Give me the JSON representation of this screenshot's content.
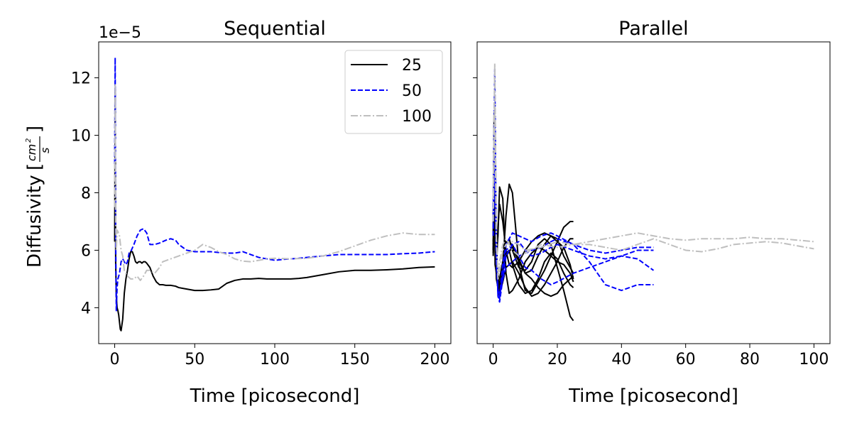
{
  "figure": {
    "ylabel": "Diffusivity",
    "yunit_numerator": "cm",
    "yunit_exponent": "2",
    "yunit_denominator": "s",
    "offset_text": "1e−5",
    "colors": {
      "25": "#000000",
      "50": "#0000ff",
      "100": "#bfbfbf"
    }
  },
  "chart_data": [
    {
      "type": "line",
      "title": "Sequential",
      "xlabel": "Time [picosecond]",
      "xlim": [
        -10,
        210
      ],
      "ylim": [
        2.75,
        13.25
      ],
      "xticks": [
        0,
        50,
        100,
        150,
        200
      ],
      "yticks": [
        4,
        6,
        8,
        10,
        12
      ],
      "y_scale_factor": "1e-5",
      "legend": {
        "position": "upper-right",
        "entries": [
          "25",
          "50",
          "100"
        ]
      },
      "series": [
        {
          "name": "25",
          "style": "solid",
          "color": "#000000",
          "x": [
            0,
            0.3,
            0.6,
            1,
            1.5,
            2,
            2.5,
            3,
            3.5,
            4,
            5,
            6,
            7,
            8,
            9,
            10,
            11,
            12,
            13,
            14,
            15,
            16,
            17,
            18,
            19,
            20,
            22,
            24,
            26,
            28,
            30,
            32,
            35,
            38,
            40,
            45,
            50,
            55,
            60,
            65,
            70,
            75,
            80,
            85,
            90,
            95,
            100,
            105,
            110,
            115,
            120,
            130,
            140,
            150,
            160,
            170,
            180,
            190,
            200
          ],
          "y": [
            6.3,
            11.6,
            5.6,
            4.4,
            4.0,
            3.9,
            3.75,
            3.5,
            3.25,
            3.2,
            3.6,
            4.5,
            5.0,
            5.3,
            5.7,
            5.95,
            5.95,
            5.8,
            5.6,
            5.55,
            5.6,
            5.6,
            5.55,
            5.6,
            5.6,
            5.55,
            5.4,
            5.1,
            4.9,
            4.8,
            4.8,
            4.78,
            4.78,
            4.75,
            4.7,
            4.65,
            4.6,
            4.6,
            4.62,
            4.65,
            4.85,
            4.95,
            5.0,
            5.0,
            5.02,
            5.0,
            5.0,
            5.0,
            5.0,
            5.02,
            5.05,
            5.15,
            5.25,
            5.3,
            5.3,
            5.32,
            5.35,
            5.4,
            5.42
          ]
        },
        {
          "name": "50",
          "style": "dashed",
          "color": "#0000ff",
          "x": [
            0,
            0.3,
            0.6,
            1,
            1.5,
            2,
            3,
            4,
            5,
            6,
            7,
            8,
            9,
            10,
            12,
            14,
            16,
            18,
            20,
            22,
            25,
            28,
            30,
            32,
            35,
            38,
            40,
            45,
            50,
            55,
            60,
            65,
            70,
            75,
            80,
            85,
            90,
            95,
            100,
            105,
            110,
            115,
            120,
            130,
            140,
            150,
            160,
            170,
            180,
            190,
            200
          ],
          "y": [
            9.0,
            12.7,
            6.5,
            3.9,
            4.7,
            5.0,
            5.2,
            5.6,
            5.7,
            5.6,
            5.5,
            5.6,
            5.9,
            5.95,
            6.2,
            6.5,
            6.7,
            6.75,
            6.6,
            6.2,
            6.2,
            6.25,
            6.3,
            6.35,
            6.4,
            6.35,
            6.2,
            6.0,
            5.95,
            5.95,
            5.95,
            5.92,
            5.9,
            5.9,
            5.95,
            5.85,
            5.75,
            5.7,
            5.65,
            5.68,
            5.7,
            5.72,
            5.75,
            5.8,
            5.85,
            5.85,
            5.85,
            5.85,
            5.88,
            5.9,
            5.95
          ]
        },
        {
          "name": "100",
          "style": "dashdot",
          "color": "#bfbfbf",
          "x": [
            0,
            0.3,
            0.6,
            1,
            1.5,
            2,
            3,
            4,
            5,
            6,
            8,
            10,
            12,
            14,
            16,
            18,
            20,
            22,
            25,
            28,
            30,
            35,
            40,
            45,
            50,
            55,
            60,
            65,
            70,
            75,
            80,
            85,
            90,
            95,
            100,
            110,
            120,
            130,
            140,
            150,
            160,
            170,
            180,
            190,
            200
          ],
          "y": [
            7.5,
            11.8,
            7.0,
            6.0,
            6.7,
            6.65,
            6.5,
            6.0,
            5.8,
            5.3,
            5.1,
            5.0,
            5.0,
            5.1,
            4.95,
            5.1,
            5.3,
            5.3,
            5.2,
            5.4,
            5.6,
            5.7,
            5.8,
            5.9,
            6.0,
            6.2,
            6.1,
            5.95,
            5.85,
            5.7,
            5.62,
            5.6,
            5.65,
            5.7,
            5.72,
            5.7,
            5.72,
            5.8,
            5.95,
            6.15,
            6.35,
            6.5,
            6.6,
            6.55,
            6.55
          ]
        }
      ]
    },
    {
      "type": "line",
      "title": "Parallel",
      "xlabel": "Time [picosecond]",
      "xlim": [
        -5,
        105
      ],
      "ylim": [
        2.75,
        13.25
      ],
      "xticks": [
        0,
        20,
        40,
        60,
        80,
        100
      ],
      "yticks": [
        4,
        6,
        8,
        10,
        12
      ],
      "y_scale_factor": "1e-5",
      "series": [
        {
          "name": "25",
          "style": "solid",
          "color": "#000000",
          "x": [
            0,
            0.3,
            0.6,
            1,
            1.5,
            2,
            3,
            4,
            5,
            6,
            8,
            10,
            12,
            14,
            16,
            18,
            20,
            22,
            24,
            25
          ],
          "y": [
            6.5,
            10.8,
            5.5,
            5.2,
            6.8,
            7.6,
            7.0,
            6.0,
            5.5,
            5.4,
            5.6,
            6.0,
            6.3,
            6.5,
            6.6,
            6.5,
            6.3,
            6.1,
            5.5,
            5.0
          ]
        },
        {
          "name": "25",
          "style": "solid",
          "color": "#000000",
          "x": [
            0,
            0.5,
            1,
            1.5,
            2,
            3,
            4,
            5,
            6,
            8,
            10,
            12,
            14,
            16,
            18,
            20,
            22,
            24,
            25
          ],
          "y": [
            6.0,
            8.5,
            5.8,
            6.5,
            8.2,
            7.8,
            5.2,
            4.5,
            4.6,
            5.0,
            5.6,
            5.9,
            6.1,
            6.0,
            5.8,
            5.6,
            5.5,
            5.2,
            4.9
          ]
        },
        {
          "name": "25",
          "style": "solid",
          "color": "#000000",
          "x": [
            0,
            0.5,
            1,
            2,
            3,
            4,
            5,
            6,
            7,
            8,
            10,
            12,
            14,
            16,
            18,
            20,
            22,
            24,
            25
          ],
          "y": [
            7.0,
            9.5,
            5.5,
            4.6,
            5.5,
            7.2,
            8.3,
            8.0,
            6.8,
            5.5,
            4.6,
            4.5,
            4.9,
            5.3,
            5.8,
            6.3,
            6.8,
            7.0,
            7.0
          ]
        },
        {
          "name": "25",
          "style": "solid",
          "color": "#000000",
          "x": [
            0,
            0.5,
            1,
            2,
            3,
            4,
            5,
            6,
            8,
            10,
            12,
            14,
            16,
            18,
            20,
            22,
            24,
            25
          ],
          "y": [
            6.2,
            7.5,
            5.0,
            4.4,
            5.2,
            5.9,
            6.0,
            5.5,
            4.8,
            4.5,
            4.6,
            5.0,
            5.6,
            5.9,
            5.7,
            5.2,
            4.8,
            4.7
          ]
        },
        {
          "name": "25",
          "style": "solid",
          "color": "#000000",
          "x": [
            0,
            0.5,
            1,
            2,
            3,
            4,
            6,
            8,
            10,
            12,
            14,
            16,
            18,
            20,
            22,
            24,
            25
          ],
          "y": [
            6.0,
            8.0,
            5.6,
            4.8,
            5.3,
            5.8,
            6.1,
            5.6,
            5.2,
            5.3,
            5.8,
            6.2,
            6.5,
            6.4,
            5.8,
            5.4,
            5.2
          ]
        },
        {
          "name": "25",
          "style": "solid",
          "color": "#000000",
          "x": [
            0,
            0.5,
            1,
            2,
            3,
            4,
            5,
            6,
            8,
            10,
            12,
            14,
            16,
            18,
            20,
            22,
            24,
            25
          ],
          "y": [
            5.8,
            7.0,
            5.2,
            5.0,
            5.6,
            6.2,
            6.4,
            6.0,
            5.4,
            5.3,
            5.6,
            6.2,
            6.4,
            6.2,
            5.4,
            4.6,
            3.7,
            3.55
          ]
        },
        {
          "name": "25",
          "style": "solid",
          "color": "#000000",
          "x": [
            0,
            0.5,
            1,
            2,
            3,
            4,
            6,
            8,
            10,
            12,
            14,
            16,
            18,
            20,
            22,
            24,
            25
          ],
          "y": [
            6.3,
            9.0,
            5.9,
            4.5,
            4.9,
            5.4,
            5.6,
            5.2,
            4.7,
            4.4,
            4.5,
            4.8,
            5.2,
            5.6,
            6.1,
            6.4,
            6.4
          ]
        },
        {
          "name": "25",
          "style": "solid",
          "color": "#000000",
          "x": [
            0,
            0.5,
            1,
            2,
            3,
            4,
            6,
            8,
            10,
            12,
            14,
            16,
            18,
            20,
            22,
            24,
            25
          ],
          "y": [
            5.9,
            7.8,
            5.4,
            4.7,
            5.5,
            6.3,
            6.2,
            5.7,
            5.2,
            5.0,
            4.7,
            4.5,
            4.4,
            4.5,
            4.8,
            5.0,
            5.1
          ]
        },
        {
          "name": "50",
          "style": "dashed",
          "color": "#0000ff",
          "x": [
            0,
            0.5,
            1,
            1.5,
            2,
            3,
            4,
            6,
            8,
            10,
            12,
            15,
            18,
            20,
            25,
            30,
            35,
            40,
            45,
            50
          ],
          "y": [
            7.5,
            12.3,
            6.2,
            4.4,
            4.2,
            5.0,
            5.8,
            6.2,
            6.3,
            6.0,
            5.8,
            5.9,
            6.1,
            6.2,
            6.0,
            5.8,
            5.7,
            5.8,
            6.0,
            6.0
          ]
        },
        {
          "name": "50",
          "style": "dashed",
          "color": "#0000ff",
          "x": [
            0,
            0.5,
            1,
            1.5,
            2,
            3,
            4,
            6,
            8,
            10,
            12,
            15,
            18,
            20,
            25,
            30,
            35,
            40,
            45,
            50
          ],
          "y": [
            6.8,
            9.3,
            5.8,
            4.5,
            4.3,
            5.2,
            6.0,
            6.2,
            5.8,
            5.4,
            5.3,
            5.0,
            4.8,
            4.9,
            5.2,
            5.4,
            5.6,
            5.8,
            5.7,
            5.3
          ]
        },
        {
          "name": "50",
          "style": "dashed",
          "color": "#0000ff",
          "x": [
            0,
            0.5,
            1,
            1.5,
            2,
            3,
            4,
            6,
            8,
            10,
            12,
            15,
            18,
            20,
            25,
            30,
            35,
            40,
            45,
            50
          ],
          "y": [
            7.2,
            10.5,
            6.0,
            4.6,
            4.4,
            5.5,
            6.2,
            6.6,
            6.5,
            6.4,
            6.3,
            6.5,
            6.6,
            6.5,
            6.2,
            5.6,
            4.8,
            4.6,
            4.8,
            4.8
          ]
        },
        {
          "name": "50",
          "style": "dashed",
          "color": "#0000ff",
          "x": [
            0,
            0.5,
            1,
            1.5,
            2,
            3,
            4,
            6,
            8,
            10,
            12,
            15,
            18,
            20,
            25,
            30,
            35,
            40,
            45,
            50
          ],
          "y": [
            6.5,
            8.8,
            5.5,
            4.5,
            4.5,
            5.0,
            5.4,
            5.6,
            5.8,
            5.9,
            6.0,
            6.1,
            6.3,
            6.4,
            6.2,
            6.0,
            5.9,
            6.0,
            6.1,
            6.1
          ]
        },
        {
          "name": "100",
          "style": "dashdot",
          "color": "#bfbfbf",
          "x": [
            0,
            0.5,
            1,
            1.5,
            2,
            3,
            4,
            6,
            8,
            10,
            15,
            20,
            25,
            30,
            35,
            40,
            45,
            50,
            55,
            60,
            65,
            70,
            75,
            80,
            85,
            90,
            95,
            100
          ],
          "y": [
            7.8,
            12.5,
            6.5,
            5.0,
            5.3,
            6.0,
            6.2,
            6.3,
            6.2,
            6.0,
            6.1,
            6.3,
            6.2,
            6.3,
            6.4,
            6.5,
            6.6,
            6.5,
            6.4,
            6.35,
            6.4,
            6.4,
            6.4,
            6.45,
            6.4,
            6.4,
            6.35,
            6.3
          ]
        },
        {
          "name": "100",
          "style": "dashdot",
          "color": "#bfbfbf",
          "x": [
            0,
            0.5,
            1,
            1.5,
            2,
            3,
            4,
            6,
            8,
            10,
            15,
            20,
            25,
            30,
            35,
            40,
            45,
            50,
            55,
            60,
            65,
            70,
            75,
            80,
            85,
            90,
            95,
            100
          ],
          "y": [
            7.0,
            11.0,
            6.2,
            5.2,
            5.6,
            6.2,
            6.4,
            6.0,
            5.8,
            5.9,
            6.2,
            6.1,
            6.2,
            6.2,
            6.1,
            6.0,
            6.2,
            6.4,
            6.2,
            6.0,
            5.95,
            6.05,
            6.2,
            6.25,
            6.3,
            6.25,
            6.15,
            6.05
          ]
        }
      ]
    }
  ]
}
